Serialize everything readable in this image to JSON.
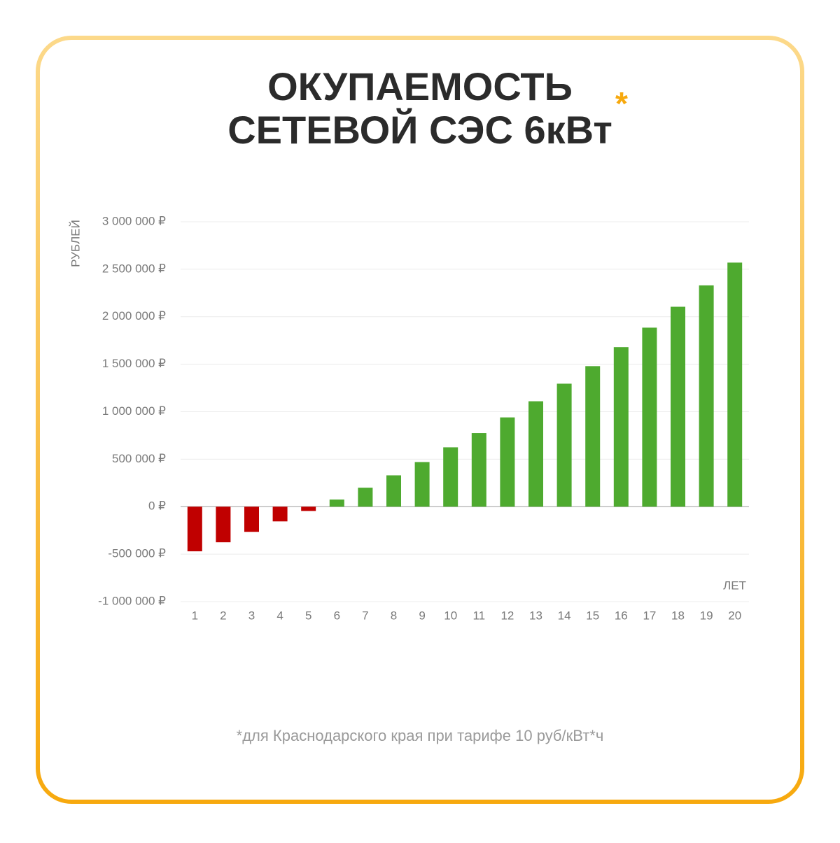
{
  "chart_data": {
    "type": "bar",
    "title": [
      "ОКУПАЕМОСТЬ",
      "СЕТЕВОЙ СЭС 6кВт"
    ],
    "title_mark": "*",
    "y_label": "РУБЛЕЙ",
    "x_label": "ЛЕТ",
    "note": "*для Краснодарского края при тарифе 10 руб/кВт*ч",
    "categories": [
      "1",
      "2",
      "3",
      "4",
      "5",
      "6",
      "7",
      "8",
      "9",
      "10",
      "11",
      "12",
      "13",
      "14",
      "15",
      "16",
      "17",
      "18",
      "19",
      "20"
    ],
    "values": [
      -470000,
      -375000,
      -265000,
      -155000,
      -45000,
      75000,
      200000,
      330000,
      470000,
      625000,
      775000,
      940000,
      1110000,
      1295000,
      1480000,
      1680000,
      1885000,
      2105000,
      2330000,
      2570000
    ],
    "positive_color": "#4eaa2f",
    "negative_color": "#c00000",
    "ylim": [
      -1000000,
      3000000
    ],
    "yticks": [
      {
        "value": -1000000,
        "label": "-1 000 000 ₽"
      },
      {
        "value": -500000,
        "label": "-500 000 ₽"
      },
      {
        "value": 0,
        "label": "0 ₽"
      },
      {
        "value": 500000,
        "label": "500 000 ₽"
      },
      {
        "value": 1000000,
        "label": "1 000 000 ₽"
      },
      {
        "value": 1500000,
        "label": "1 500 000 ₽"
      },
      {
        "value": 2000000,
        "label": "2 000 000 ₽"
      },
      {
        "value": 2500000,
        "label": "2 500 000 ₽"
      },
      {
        "value": 3000000,
        "label": "3 000 000 ₽"
      }
    ],
    "grid": true
  }
}
